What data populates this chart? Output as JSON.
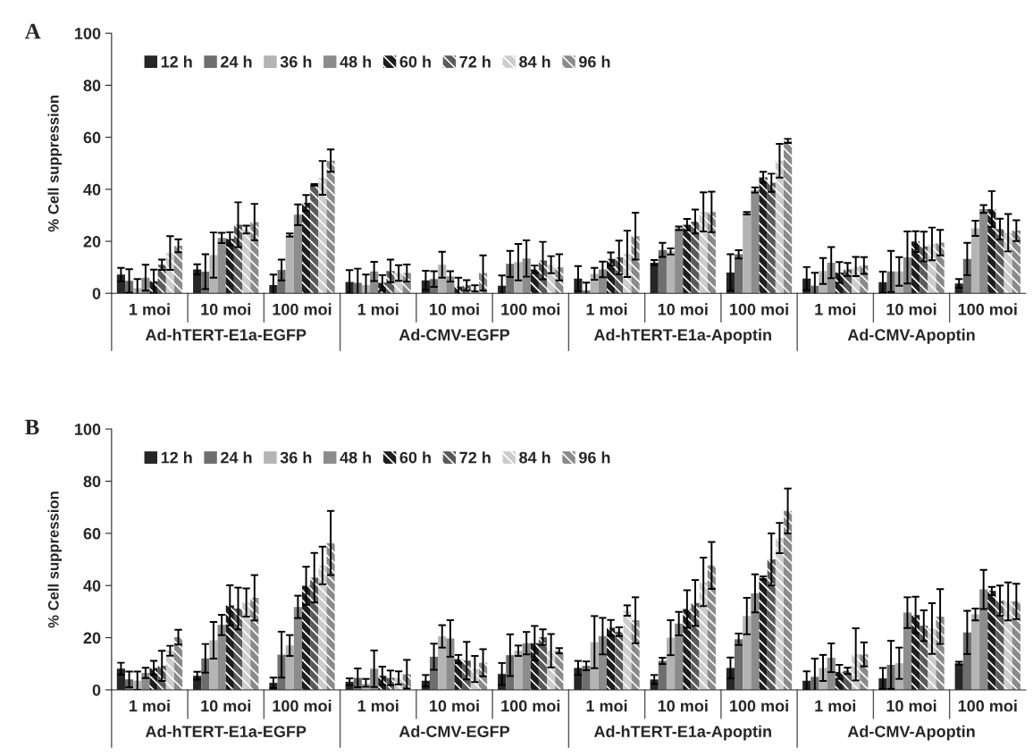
{
  "chart_data": [
    {
      "type": "bar",
      "title": "A",
      "ylabel": "% Cell suppression",
      "legend": "top left",
      "grid": false,
      "ylim": [
        0,
        100
      ],
      "yticks": [
        0,
        20,
        40,
        60,
        80,
        100
      ],
      "categories": [
        "1 moi",
        "10 moi",
        "100 moi",
        "1 moi",
        "10 moi",
        "100 moi",
        "1 moi",
        "10 moi",
        "100 moi",
        "1 moi",
        "10 moi",
        "100 moi"
      ],
      "annotations": [
        "Ad-hTERT-E1a-EGFP",
        "Ad-CMV-EGFP",
        "Ad-hTERT-E1a-Apoptin",
        "Ad-CMV-Apoptin"
      ],
      "series": [
        {
          "name": "12 h",
          "color": "#262626",
          "values": [
            7.2,
            9.2,
            3.2,
            4.4,
            5,
            2.9,
            5.7,
            11.8,
            8,
            5.7,
            4.3,
            3.8
          ],
          "errors": [
            2.6,
            2,
            4,
            4.5,
            3.7,
            4,
            4.8,
            1,
            7,
            4.4,
            4,
            1.7
          ]
        },
        {
          "name": "24 h",
          "color": "#6e6e6e",
          "values": [
            4.8,
            8.3,
            9,
            4,
            5.5,
            11.3,
            1.1,
            16.7,
            15,
            2.9,
            8.4,
            13.2
          ],
          "errors": [
            4.5,
            6.7,
            4,
            5.5,
            3,
            5,
            3,
            2.7,
            1.6,
            5,
            7.9,
            6.2
          ]
        },
        {
          "name": "36 h",
          "color": "#b4b4b4",
          "values": [
            2,
            14.7,
            22.4,
            3.2,
            11,
            12,
            7.5,
            16.1,
            30.8,
            8.6,
            8.4,
            25
          ],
          "errors": [
            3.5,
            8.7,
            0.6,
            4,
            5,
            7,
            2.3,
            1.2,
            0.5,
            5,
            5.5,
            2.9
          ]
        },
        {
          "name": "48 h",
          "color": "#8c8c8c",
          "values": [
            6,
            21.3,
            30.2,
            8.4,
            6.5,
            13.4,
            9.2,
            25,
            39.7,
            11.8,
            13.8,
            32.4
          ],
          "errors": [
            5,
            2,
            4,
            3.7,
            2,
            7,
            3,
            0.7,
            1,
            6,
            10,
            1.5
          ]
        },
        {
          "name": "60 h",
          "color": "#1e1e1e",
          "values": [
            4.6,
            21,
            34.8,
            4,
            2.6,
            9.2,
            13.2,
            26.4,
            44.6,
            8,
            19.9,
            32.4
          ],
          "errors": [
            4.5,
            2.5,
            3,
            3,
            3.4,
            1.5,
            2.5,
            2.2,
            2.1,
            4,
            4,
            6.9
          ]
        },
        {
          "name": "72 h",
          "color": "#5a5a5a",
          "values": [
            11,
            26.4,
            41.7,
            8.6,
            3.1,
            12.6,
            13.8,
            27.6,
            42.5,
            9.2,
            18,
            24.7
          ],
          "errors": [
            2,
            8.6,
            0.3,
            4.4,
            2,
            7.2,
            6.5,
            4.6,
            3.5,
            2.5,
            5.7,
            4
          ]
        },
        {
          "name": "84 h",
          "color": "#cccccc",
          "values": [
            15.5,
            24.5,
            44.4,
            7.8,
            1.7,
            11,
            15.2,
            31.3,
            51,
            10.3,
            19,
            23.3
          ],
          "errors": [
            6.5,
            1.5,
            6.5,
            3,
            [
              1,
              1.4
            ],
            3.3,
            8.9,
            7.5,
            6.5,
            3.7,
            6.3,
            7.2
          ]
        },
        {
          "name": "96 h",
          "color": "#8a8a8a",
          "values": [
            18.3,
            27.4,
            51,
            7.8,
            7.8,
            10,
            22,
            31.3,
            58.6,
            10.7,
            19.5,
            24.1
          ],
          "errors": [
            2.5,
            7,
            4.3,
            3.3,
            6.8,
            5,
            9,
            7.8,
            0.8,
            3.2,
            4.9,
            4
          ]
        }
      ]
    },
    {
      "type": "bar",
      "title": "B",
      "ylabel": "% Cell suppression",
      "legend": "top left",
      "grid": false,
      "ylim": [
        0,
        100
      ],
      "yticks": [
        0,
        20,
        40,
        60,
        80,
        100
      ],
      "categories": [
        "1 moi",
        "10 moi",
        "100 moi",
        "1 moi",
        "10 moi",
        "100 moi",
        "1 moi",
        "10 moi",
        "100 moi",
        "1 moi",
        "10 moi",
        "100 moi"
      ],
      "annotations": [
        "Ad-hTERT-E1a-EGFP",
        "Ad-CMV-EGFP",
        "Ad-hTERT-E1a-Apoptin",
        "Ad-CMV-Apoptin"
      ],
      "series": [
        {
          "name": "12 h",
          "color": "#262626",
          "values": [
            8.1,
            5.4,
            2.7,
            3.1,
            3.5,
            6.1,
            8.4,
            4,
            8.4,
            3.5,
            4.4,
            10.2
          ],
          "errors": [
            2.3,
            1.5,
            2,
            1.3,
            2.2,
            4.2,
            2.7,
            1.7,
            4,
            3.6,
            4,
            0.6
          ]
        },
        {
          "name": "24 h",
          "color": "#6e6e6e",
          "values": [
            4,
            12.1,
            13.5,
            4.6,
            12.7,
            13.3,
            9.2,
            11.1,
            19.4,
            5,
            9.6,
            22
          ],
          "errors": [
            3,
            5.5,
            8.8,
            3.6,
            5,
            8,
            1.7,
            1.2,
            2.2,
            7,
            9.2,
            8.3
          ]
        },
        {
          "name": "36 h",
          "color": "#b4b4b4",
          "values": [
            3.5,
            19,
            17,
            2.4,
            20.5,
            15,
            18.3,
            20,
            28.3,
            8.4,
            10.2,
            28.9
          ],
          "errors": [
            3.5,
            7,
            4,
            [
              1.2,
              1.8
            ],
            4.3,
            2,
            10,
            6.7,
            7,
            5,
            6,
            2.3
          ]
        },
        {
          "name": "48 h",
          "color": "#8c8c8c",
          "values": [
            6.5,
            24.9,
            31.8,
            8.1,
            19.7,
            17.9,
            20.6,
            25.4,
            37,
            12.3,
            29.6,
            38.5
          ],
          "errors": [
            2,
            3.9,
            4.3,
            7,
            7,
            4.3,
            7,
            4.5,
            7.3,
            5.5,
            5.9,
            7.5
          ]
        },
        {
          "name": "60 h",
          "color": "#1e1e1e",
          "values": [
            8.4,
            32.4,
            39.9,
            5.4,
            11.8,
            17.9,
            23.8,
            31,
            42.9,
            6.9,
            28.7,
            37.9
          ],
          "errors": [
            2.7,
            7.7,
            7.3,
            3.5,
            1.6,
            6.6,
            3,
            7.2,
            0.6,
            2.7,
            7,
            1.6
          ]
        },
        {
          "name": "72 h",
          "color": "#5a5a5a",
          "values": [
            9.2,
            31.2,
            43,
            4.6,
            11.2,
            20.2,
            22.3,
            33.3,
            50,
            7.3,
            24.6,
            34.2
          ],
          "errors": [
            5.8,
            8,
            9.5,
            2.8,
            7.2,
            3,
            1.7,
            8.8,
            10,
            1.2,
            5.9,
            5.8
          ]
        },
        {
          "name": "84 h",
          "color": "#cccccc",
          "values": [
            15,
            33.5,
            47.7,
            4.6,
            8,
            15,
            30.4,
            41.4,
            58.2,
            13.6,
            23.5,
            33.9
          ],
          "errors": [
            1.9,
            5.4,
            7.2,
            2.5,
            5,
            6.4,
            2,
            9.3,
            5.8,
            10,
            9.7,
            7.3
          ]
        },
        {
          "name": "96 h",
          "color": "#8a8a8a",
          "values": [
            20.2,
            35.3,
            56.3,
            6,
            10.4,
            15,
            26.7,
            47.7,
            68.6,
            13.6,
            28.1,
            33.9
          ],
          "errors": [
            2.8,
            8.7,
            12.3,
            5.5,
            5.2,
            1,
            8.8,
            9,
            8.6,
            4.6,
            10.5,
            6.8
          ]
        }
      ]
    }
  ]
}
